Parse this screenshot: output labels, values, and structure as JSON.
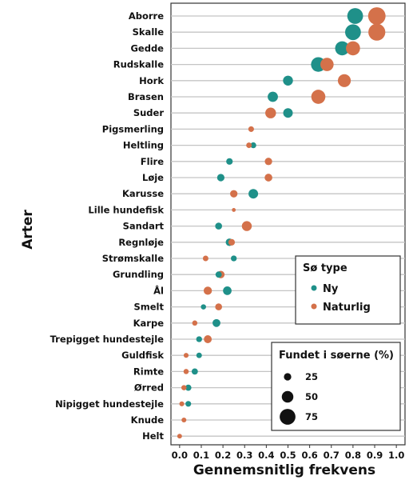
{
  "chart_data": {
    "type": "scatter",
    "xlabel": "Gennemsnitlig frekvens",
    "ylabel": "Arter",
    "xlim": [
      -0.04,
      1.04
    ],
    "x_ticks": [
      "0.0",
      "0.1",
      "0.2",
      "0.3",
      "0.4",
      "0.5",
      "0.6",
      "0.7",
      "0.8",
      "0.9",
      "1.0"
    ],
    "grid": "horizontal",
    "categories": [
      "Aborre",
      "Skalle",
      "Gedde",
      "Rudskalle",
      "Hork",
      "Brasen",
      "Suder",
      "Pigsmerling",
      "Heltling",
      "Flire",
      "Løje",
      "Karusse",
      "Lille hundefisk",
      "Sandart",
      "Regnløje",
      "Strømskalle",
      "Grundling",
      "Ål",
      "Smelt",
      "Karpe",
      "Trepigget hundestejle",
      "Guldfisk",
      "Rimte",
      "Ørred",
      "Nipigget hundestejle",
      "Knude",
      "Helt"
    ],
    "legend_color": {
      "title": "Sø type",
      "position": "right-middle",
      "entries": [
        {
          "label": "Ny",
          "color": "#1f9089"
        },
        {
          "label": "Naturlig",
          "color": "#d4714a"
        }
      ]
    },
    "legend_size": {
      "title": "Fundet i søerne (%)",
      "position": "bottom-right",
      "entries": [
        {
          "label": "25",
          "value": 25
        },
        {
          "label": "50",
          "value": 50
        },
        {
          "label": "75",
          "value": 75
        }
      ]
    },
    "series": [
      {
        "name": "Ny",
        "color": "#1f9089",
        "points": [
          {
            "category": "Aborre",
            "x": 0.81,
            "found_pct": 75
          },
          {
            "category": "Skalle",
            "x": 0.8,
            "found_pct": 75
          },
          {
            "category": "Gedde",
            "x": 0.75,
            "found_pct": 65
          },
          {
            "category": "Rudskalle",
            "x": 0.64,
            "found_pct": 68
          },
          {
            "category": "Hork",
            "x": 0.5,
            "found_pct": 40
          },
          {
            "category": "Brasen",
            "x": 0.43,
            "found_pct": 42
          },
          {
            "category": "Suder",
            "x": 0.5,
            "found_pct": 38
          },
          {
            "category": "Heltling",
            "x": 0.34,
            "found_pct": 16
          },
          {
            "category": "Flire",
            "x": 0.23,
            "found_pct": 20
          },
          {
            "category": "Løje",
            "x": 0.19,
            "found_pct": 25
          },
          {
            "category": "Karusse",
            "x": 0.34,
            "found_pct": 38
          },
          {
            "category": "Sandart",
            "x": 0.18,
            "found_pct": 22
          },
          {
            "category": "Regnløje",
            "x": 0.23,
            "found_pct": 26
          },
          {
            "category": "Strømskalle",
            "x": 0.25,
            "found_pct": 16
          },
          {
            "category": "Grundling",
            "x": 0.18,
            "found_pct": 18
          },
          {
            "category": "Ål",
            "x": 0.22,
            "found_pct": 32
          },
          {
            "category": "Smelt",
            "x": 0.11,
            "found_pct": 12
          },
          {
            "category": "Karpe",
            "x": 0.17,
            "found_pct": 28
          },
          {
            "category": "Trepigget hundestejle",
            "x": 0.09,
            "found_pct": 16
          },
          {
            "category": "Guldfisk",
            "x": 0.09,
            "found_pct": 14
          },
          {
            "category": "Rimte",
            "x": 0.07,
            "found_pct": 18
          },
          {
            "category": "Ørred",
            "x": 0.04,
            "found_pct": 18
          },
          {
            "category": "Nipigget hundestejle",
            "x": 0.04,
            "found_pct": 15
          }
        ]
      },
      {
        "name": "Naturlig",
        "color": "#d4714a",
        "points": [
          {
            "category": "Aborre",
            "x": 0.91,
            "found_pct": 85
          },
          {
            "category": "Skalle",
            "x": 0.91,
            "found_pct": 82
          },
          {
            "category": "Gedde",
            "x": 0.8,
            "found_pct": 65
          },
          {
            "category": "Rudskalle",
            "x": 0.68,
            "found_pct": 60
          },
          {
            "category": "Hork",
            "x": 0.76,
            "found_pct": 58
          },
          {
            "category": "Brasen",
            "x": 0.64,
            "found_pct": 65
          },
          {
            "category": "Suder",
            "x": 0.42,
            "found_pct": 45
          },
          {
            "category": "Pigsmerling",
            "x": 0.33,
            "found_pct": 15
          },
          {
            "category": "Heltling",
            "x": 0.32,
            "found_pct": 14
          },
          {
            "category": "Flire",
            "x": 0.41,
            "found_pct": 25
          },
          {
            "category": "Løje",
            "x": 0.41,
            "found_pct": 27
          },
          {
            "category": "Karusse",
            "x": 0.25,
            "found_pct": 25
          },
          {
            "category": "Lille hundefisk",
            "x": 0.25,
            "found_pct": 4
          },
          {
            "category": "Sandart",
            "x": 0.31,
            "found_pct": 40
          },
          {
            "category": "Regnløje",
            "x": 0.24,
            "found_pct": 20
          },
          {
            "category": "Strømskalle",
            "x": 0.12,
            "found_pct": 14
          },
          {
            "category": "Grundling",
            "x": 0.19,
            "found_pct": 26
          },
          {
            "category": "Ål",
            "x": 0.13,
            "found_pct": 30
          },
          {
            "category": "Smelt",
            "x": 0.18,
            "found_pct": 22
          },
          {
            "category": "Karpe",
            "x": 0.07,
            "found_pct": 12
          },
          {
            "category": "Trepigget hundestejle",
            "x": 0.13,
            "found_pct": 28
          },
          {
            "category": "Guldfisk",
            "x": 0.03,
            "found_pct": 10
          },
          {
            "category": "Rimte",
            "x": 0.03,
            "found_pct": 12
          },
          {
            "category": "Ørred",
            "x": 0.02,
            "found_pct": 12
          },
          {
            "category": "Nipigget hundestejle",
            "x": 0.01,
            "found_pct": 10
          },
          {
            "category": "Knude",
            "x": 0.02,
            "found_pct": 10
          },
          {
            "category": "Helt",
            "x": 0.0,
            "found_pct": 9
          }
        ]
      }
    ]
  }
}
